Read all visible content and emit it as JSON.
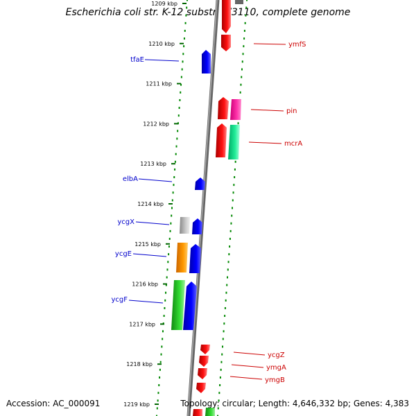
{
  "title": "Escherichia coli str. K-12 substr. W3110, complete genome",
  "accession": "Accession: AC_000091",
  "summary": "Topology: circular; Length: 4,646,332 bp; Genes: 4,383",
  "kbp_ticks": [
    {
      "label": "1209 kbp",
      "pos": 1209
    },
    {
      "label": "1210 kbp",
      "pos": 1210
    },
    {
      "label": "1211 kbp",
      "pos": 1211
    },
    {
      "label": "1212 kbp",
      "pos": 1212
    },
    {
      "label": "1213 kbp",
      "pos": 1213
    },
    {
      "label": "1214 kbp",
      "pos": 1214
    },
    {
      "label": "1215 kbp",
      "pos": 1215
    },
    {
      "label": "1216 kbp",
      "pos": 1216
    },
    {
      "label": "1217 kbp",
      "pos": 1217
    },
    {
      "label": "1218 kbp",
      "pos": 1218
    },
    {
      "label": "1219 kbp",
      "pos": 1219
    }
  ],
  "left_genes": [
    {
      "name": "tfaE",
      "color": "#0000cc"
    },
    {
      "name": "elbA",
      "color": "#0000cc"
    },
    {
      "name": "ycgX",
      "color": "#0000cc"
    },
    {
      "name": "ycgE",
      "color": "#0000cc"
    },
    {
      "name": "ycgF",
      "color": "#0000cc"
    }
  ],
  "right_genes": [
    {
      "name": "ymfS",
      "color": "#cc0000"
    },
    {
      "name": "pin",
      "color": "#cc0000"
    },
    {
      "name": "mcrA",
      "color": "#cc0000"
    },
    {
      "name": "ycgZ",
      "color": "#cc0000"
    },
    {
      "name": "ymgA",
      "color": "#cc0000"
    },
    {
      "name": "ymgB",
      "color": "#cc0000"
    }
  ],
  "colors": {
    "forward_strand": "#ee0000",
    "reverse_strand": "#0000ee",
    "cog_green": "#22cc22",
    "cog_orange": "#ee8800",
    "cog_gray": "#bbbbbb",
    "cog_pink": "#ee2299",
    "cog_teal": "#11dd99",
    "backbone": "#888888",
    "dotted_ring": "#008800"
  }
}
